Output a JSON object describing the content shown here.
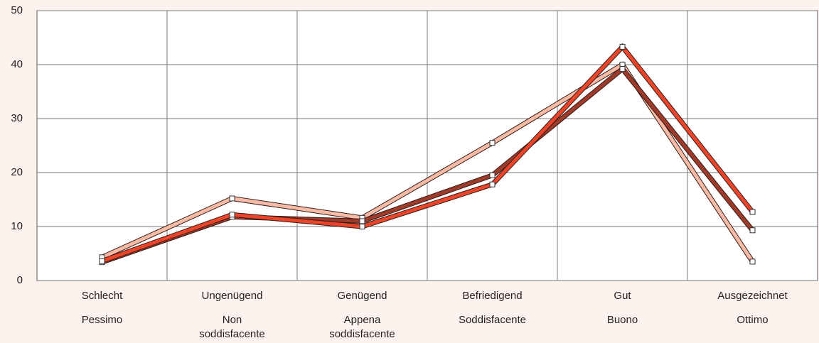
{
  "chart_data": {
    "type": "line",
    "categories": [
      "Schlecht",
      "Ungenügend",
      "Genügend",
      "Befriedigend",
      "Gut",
      "Ausgezeichnet"
    ],
    "categories_italian": [
      "Pessimo",
      "Non soddisfacente",
      "Appena soddisfacente",
      "Soddisfacente",
      "Buono",
      "Ottimo"
    ],
    "series": [
      {
        "color": "#f5bba6",
        "values": [
          4.3,
          15.2,
          11.6,
          25.5,
          40,
          3.5
        ]
      },
      {
        "color": "#9c3b2b",
        "values": [
          3.4,
          11.8,
          11.0,
          19.5,
          39.2,
          9.3
        ]
      },
      {
        "color": "#e8452a",
        "values": [
          3.6,
          12.2,
          10.0,
          17.8,
          43.3,
          12.7
        ]
      }
    ],
    "ylim": [
      0,
      50
    ],
    "yticks": [
      0,
      10,
      20,
      30,
      40,
      50
    ],
    "grid": true
  }
}
